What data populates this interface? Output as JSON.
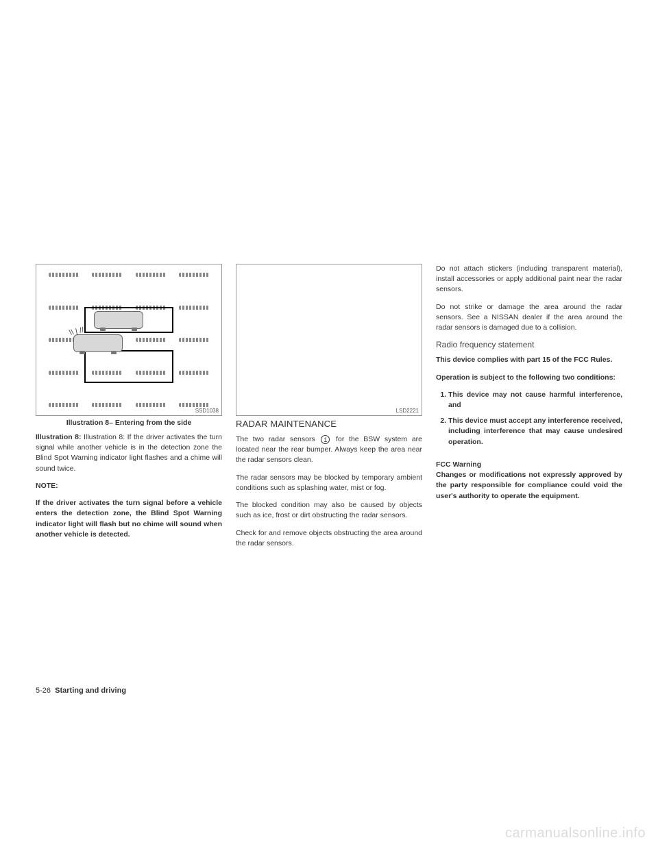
{
  "col1": {
    "figure_code": "SSD1038",
    "caption": "Illustration 8– Entering from the side",
    "para1_bold": "Illustration 8:",
    "para1_rest": " Illustration 8: If the driver activates the turn signal while another vehicle is in the detection zone the Blind Spot Warning indicator light flashes and a chime will sound twice.",
    "note_label": "NOTE:",
    "note_body": "If the driver activates the turn signal before a vehicle enters the detection zone, the Blind Spot Warning indicator light will flash but no chime will sound when another vehicle is detected."
  },
  "col2": {
    "figure_code": "LSD2221",
    "heading": "RADAR MAINTENANCE",
    "circled_num": "1",
    "para1_a": "The two radar sensors ",
    "para1_b": " for the BSW system are located near the rear bumper. Always keep the area near the radar sensors clean.",
    "para2": "The radar sensors may be blocked by temporary ambient conditions such as splashing water, mist or fog.",
    "para3": "The blocked condition may also be caused by objects such as ice, frost or dirt obstructing the radar sensors.",
    "para4": "Check for and remove objects obstructing the area around the radar sensors."
  },
  "col3": {
    "para1": "Do not attach stickers (including transparent material), install accessories or apply additional paint near the radar sensors.",
    "para2": "Do not strike or damage the area around the radar sensors. See a NISSAN dealer if the area around the radar sensors is damaged due to a collision.",
    "heading": "Radio frequency statement",
    "bold1": "This device complies with part 15 of the FCC Rules.",
    "bold2": "Operation is subject to the following two conditions:",
    "li1": "This device may not cause harmful interference, and",
    "li2": "This device must accept any interference received, including interference that may cause undesired operation.",
    "fcc_label": "FCC Warning",
    "fcc_body": "Changes or modifications not expressly approved by the party responsible for compliance could void the user's authority to operate the equipment."
  },
  "footer": {
    "page": "5-26",
    "section": "Starting and driving"
  },
  "watermark": "carmanualsonline.info"
}
